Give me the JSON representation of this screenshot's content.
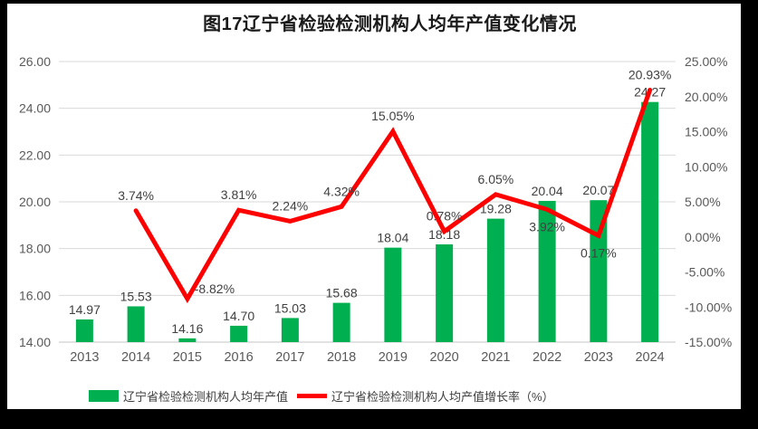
{
  "title": "图17辽宁省检验检测机构人均年产值变化情况",
  "background_color": "#FFFFFF",
  "frame_color": "#000000",
  "grid_color": "#D9D9D9",
  "axis_label_color": "#595959",
  "data_label_color": "#404040",
  "chart_data": {
    "type": "combo-bar-line",
    "title": "图17辽宁省检验检测机构人均年产值变化情况",
    "categories": [
      "2013",
      "2014",
      "2015",
      "2016",
      "2017",
      "2018",
      "2019",
      "2020",
      "2021",
      "2022",
      "2023",
      "2024"
    ],
    "series": [
      {
        "name": "辽宁省检验检测机构人均年产值",
        "type": "bar",
        "axis": "left",
        "color": "#00B050",
        "values": [
          14.97,
          15.53,
          14.16,
          14.7,
          15.03,
          15.68,
          18.04,
          18.18,
          19.28,
          20.04,
          20.07,
          24.27
        ],
        "labels": [
          "14.97",
          "15.53",
          "14.16",
          "14.70",
          "15.03",
          "15.68",
          "18.04",
          "18.18",
          "19.28",
          "20.04",
          "20.07",
          "24.27"
        ]
      },
      {
        "name": "辽宁省检验检测机构人均产值增长率（%）",
        "type": "line",
        "axis": "right",
        "color": "#FF0000",
        "values": [
          null,
          3.74,
          -8.82,
          3.81,
          2.24,
          4.32,
          15.05,
          0.78,
          6.05,
          3.92,
          0.17,
          20.93
        ],
        "labels": [
          null,
          "3.74%",
          "-8.82%",
          "3.81%",
          "2.24%",
          "4.32%",
          "15.05%",
          "0.78%",
          "6.05%",
          "3.92%",
          "0.17%",
          "20.93%"
        ],
        "label_placement": [
          null,
          "above",
          "right",
          "above",
          "above",
          "above",
          "above",
          "above",
          "above",
          "below",
          "below",
          "above"
        ]
      }
    ],
    "left_axis": {
      "min": 14,
      "max": 26,
      "ticks": [
        "14.00",
        "16.00",
        "18.00",
        "20.00",
        "22.00",
        "24.00",
        "26.00"
      ]
    },
    "right_axis": {
      "min": -15,
      "max": 25,
      "ticks": [
        "-15.00%",
        "-10.00%",
        "-5.00%",
        "0.00%",
        "5.00%",
        "10.00%",
        "15.00%",
        "20.00%",
        "25.00%"
      ]
    },
    "grid": true,
    "legend_position": "bottom"
  },
  "legend": {
    "items": [
      {
        "label": "辽宁省检验检测机构人均年产值",
        "swatch": "bar",
        "color": "#00B050"
      },
      {
        "label": "辽宁省检验检测机构人均产值增长率（%）",
        "swatch": "line",
        "color": "#FF0000"
      }
    ]
  }
}
